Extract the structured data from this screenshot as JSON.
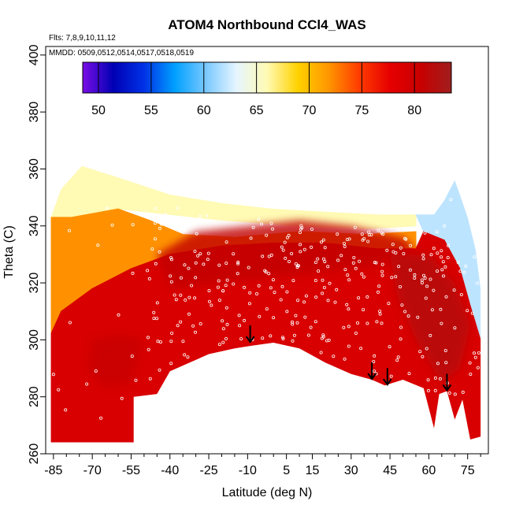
{
  "chart_data": {
    "type": "heatmap",
    "title": "ATOM4 Northbound CCl4_WAS",
    "subtitle_flights": "Flts: 7,8,9,10,11,12",
    "subtitle_dates": "MMDD: 0509,0512,0514,0517,0518,0519",
    "xlabel": "Latitude (deg N)",
    "ylabel": "Theta (C)",
    "xlim": [
      -88,
      83
    ],
    "ylim": [
      260,
      403
    ],
    "x_ticks": [
      -85,
      -70,
      -55,
      -40,
      -25,
      -10,
      5,
      15,
      30,
      45,
      60,
      75
    ],
    "y_ticks": [
      260,
      280,
      300,
      320,
      340,
      360,
      380,
      400
    ],
    "colorbar": {
      "ticks": [
        50,
        55,
        60,
        65,
        70,
        75,
        80
      ],
      "range": [
        48.5,
        83.5
      ],
      "colors": [
        "#7a0ee6",
        "#0000b4",
        "#0032e6",
        "#00a0ff",
        "#78c8ff",
        "#e6f5ff",
        "#fffab4",
        "#ffd200",
        "#ff9600",
        "#ff3c00",
        "#e60000",
        "#c80000",
        "#a01e1e"
      ]
    },
    "upper_boundary": [
      [
        -86,
        343
      ],
      [
        -82,
        353
      ],
      [
        -74,
        361
      ],
      [
        -60,
        357
      ],
      [
        -40,
        351
      ],
      [
        -20,
        348
      ],
      [
        0,
        346
      ],
      [
        20,
        345
      ],
      [
        40,
        344
      ],
      [
        55,
        344
      ],
      [
        62,
        344
      ],
      [
        66,
        349
      ],
      [
        70,
        356
      ],
      [
        72,
        351
      ],
      [
        75,
        343
      ],
      [
        78,
        332
      ],
      [
        80,
        318
      ]
    ],
    "lower_boundary": [
      [
        -86,
        264
      ],
      [
        -54,
        264
      ],
      [
        -54,
        280
      ],
      [
        -45,
        281
      ],
      [
        -40,
        289
      ],
      [
        -25,
        295
      ],
      [
        -15,
        297
      ],
      [
        -8,
        298
      ],
      [
        0,
        299
      ],
      [
        10,
        297
      ],
      [
        20,
        292
      ],
      [
        30,
        288
      ],
      [
        38,
        286
      ],
      [
        43,
        284
      ],
      [
        50,
        286
      ],
      [
        58,
        283
      ],
      [
        62,
        269
      ],
      [
        64,
        281
      ],
      [
        67,
        282
      ],
      [
        70,
        272
      ],
      [
        73,
        279
      ],
      [
        76,
        265
      ],
      [
        80,
        266
      ]
    ],
    "color_zones": [
      {
        "poly": [
          [
            -86,
            343
          ],
          [
            -82,
            353
          ],
          [
            -74,
            361
          ],
          [
            -60,
            357
          ],
          [
            -40,
            351
          ],
          [
            -20,
            348
          ],
          [
            0,
            346
          ],
          [
            20,
            345
          ],
          [
            40,
            344
          ],
          [
            55,
            344
          ],
          [
            55,
            340
          ],
          [
            35,
            339
          ],
          [
            10,
            340
          ],
          [
            -20,
            342
          ],
          [
            -40,
            344
          ],
          [
            -60,
            346
          ],
          [
            -78,
            343
          ]
        ],
        "value": 66
      },
      {
        "poly": [
          [
            55,
            344
          ],
          [
            62,
            344
          ],
          [
            66,
            349
          ],
          [
            70,
            356
          ],
          [
            72,
            351
          ],
          [
            75,
            343
          ],
          [
            78,
            332
          ],
          [
            80,
            318
          ],
          [
            80,
            300
          ],
          [
            76,
            312
          ],
          [
            72,
            325
          ],
          [
            66,
            335
          ],
          [
            58,
            338
          ]
        ],
        "value": 62
      },
      {
        "poly": [
          [
            -86,
            343
          ],
          [
            -78,
            343
          ],
          [
            -60,
            346
          ],
          [
            -48,
            342
          ],
          [
            -35,
            337
          ],
          [
            -15,
            336
          ],
          [
            10,
            338
          ],
          [
            35,
            337
          ],
          [
            55,
            338
          ],
          [
            55,
            332
          ],
          [
            40,
            332
          ],
          [
            20,
            334
          ],
          [
            0,
            334
          ],
          [
            -20,
            333
          ],
          [
            -40,
            330
          ],
          [
            -55,
            325
          ],
          [
            -70,
            318
          ],
          [
            -82,
            310
          ],
          [
            -86,
            302
          ]
        ],
        "value": 72
      },
      {
        "poly": [
          [
            -86,
            302
          ],
          [
            -82,
            310
          ],
          [
            -70,
            318
          ],
          [
            -55,
            325
          ],
          [
            -40,
            330
          ],
          [
            -20,
            333
          ],
          [
            0,
            334
          ],
          [
            20,
            334
          ],
          [
            40,
            332
          ],
          [
            55,
            332
          ],
          [
            58,
            338
          ],
          [
            66,
            335
          ],
          [
            72,
            325
          ],
          [
            76,
            312
          ],
          [
            80,
            300
          ],
          [
            80,
            266
          ],
          [
            76,
            265
          ],
          [
            73,
            279
          ],
          [
            70,
            272
          ],
          [
            67,
            282
          ],
          [
            64,
            281
          ],
          [
            62,
            269
          ],
          [
            58,
            283
          ],
          [
            50,
            286
          ],
          [
            43,
            284
          ],
          [
            38,
            286
          ],
          [
            30,
            288
          ],
          [
            20,
            292
          ],
          [
            10,
            297
          ],
          [
            0,
            299
          ],
          [
            -8,
            298
          ],
          [
            -15,
            297
          ],
          [
            -25,
            295
          ],
          [
            -40,
            289
          ],
          [
            -45,
            281
          ],
          [
            -54,
            280
          ],
          [
            -54,
            264
          ],
          [
            -86,
            264
          ]
        ],
        "value": 79
      }
    ],
    "highlight_zones": [
      {
        "poly": [
          [
            -45,
            330
          ],
          [
            -30,
            338
          ],
          [
            -10,
            340
          ],
          [
            10,
            342
          ],
          [
            30,
            340
          ],
          [
            50,
            336
          ],
          [
            55,
            332
          ],
          [
            40,
            326
          ],
          [
            20,
            324
          ],
          [
            0,
            322
          ],
          [
            -20,
            320
          ],
          [
            -40,
            318
          ]
        ],
        "value": 81
      },
      {
        "poly": [
          [
            45,
            330
          ],
          [
            60,
            330
          ],
          [
            70,
            320
          ],
          [
            76,
            305
          ],
          [
            72,
            290
          ],
          [
            65,
            285
          ],
          [
            55,
            300
          ],
          [
            48,
            315
          ]
        ],
        "value": 82
      },
      {
        "poly": [
          [
            -70,
            300
          ],
          [
            -60,
            302
          ],
          [
            -50,
            300
          ],
          [
            -55,
            285
          ],
          [
            -65,
            283
          ],
          [
            -72,
            290
          ]
        ],
        "value": 80.5
      }
    ],
    "arrows_latitude_theta": [
      [
        -9,
        299
      ],
      [
        38,
        286
      ],
      [
        44,
        284
      ],
      [
        67,
        282
      ]
    ],
    "sample_point_count": 420
  }
}
